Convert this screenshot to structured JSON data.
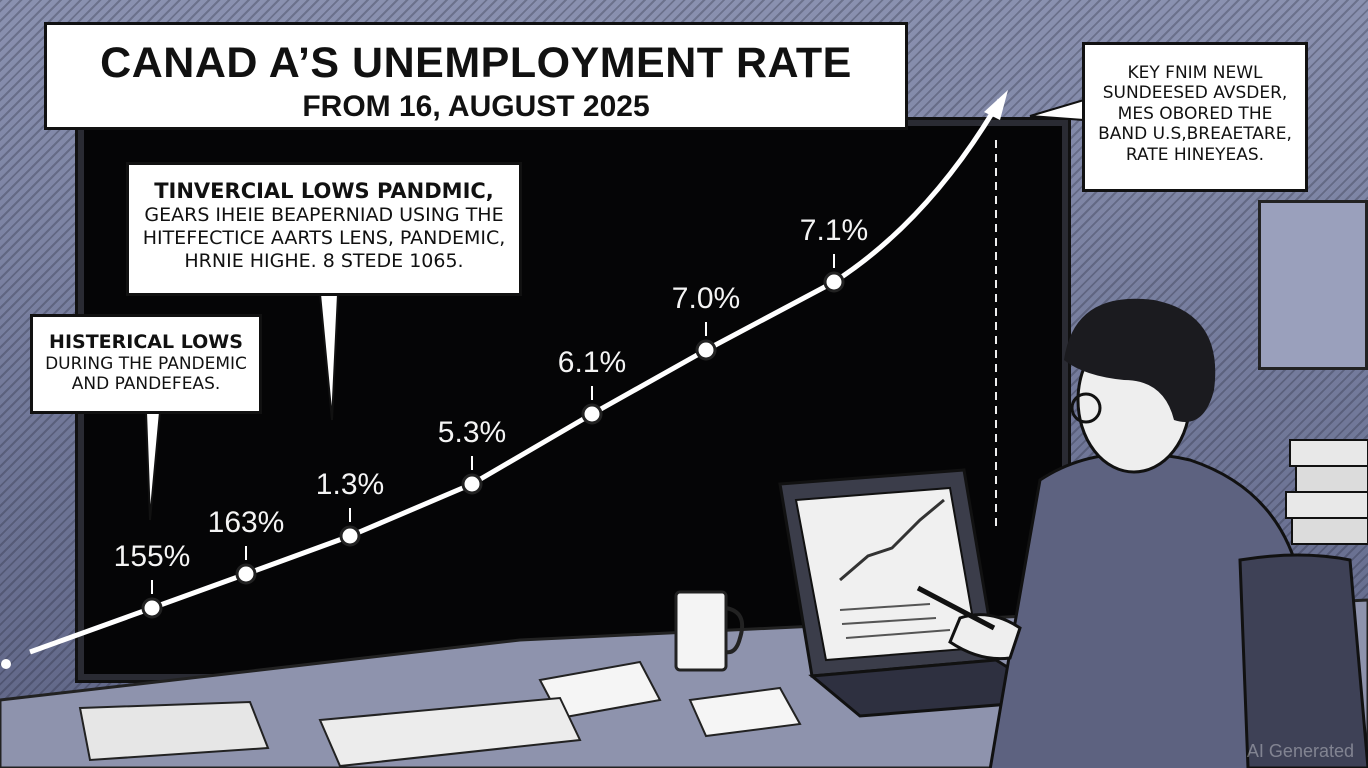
{
  "title": {
    "main": "CANAD A’S UNEMPLOYMENT RATE",
    "sub": "FROM 16, AUGUST 2025"
  },
  "callouts": {
    "middle": [
      "TINVERCIAL LOWS PANDMIC,",
      "GEARS IHEIE BEAPERNIAD USING THE",
      "HITEFECTICE AARTS LENS, PANDEMIC,",
      "HRNIE HIGHE. 8 STEDE 1065."
    ],
    "left": [
      "HISTERICAL LOWS",
      "DURING THE PANDEMIC",
      "AND PANDEFEAS."
    ],
    "right": [
      "KEY FNIM NEWL",
      "SUNDEESED AVSDER,",
      "MES OBORED THE",
      "BAND U.S,BREAETARE,",
      "RATE HINEYEAS."
    ]
  },
  "chart_data": {
    "type": "line",
    "points": [
      {
        "label": "155%"
      },
      {
        "label": "163%"
      },
      {
        "label": "1.3%"
      },
      {
        "label": "5.3%"
      },
      {
        "label": "6.1%"
      },
      {
        "label": "7.0%"
      },
      {
        "label": "7.1%"
      }
    ]
  },
  "watermark": "AI Generated",
  "colors": {
    "background": "#7f86a6",
    "board": "#050506",
    "line": "#ffffff"
  }
}
